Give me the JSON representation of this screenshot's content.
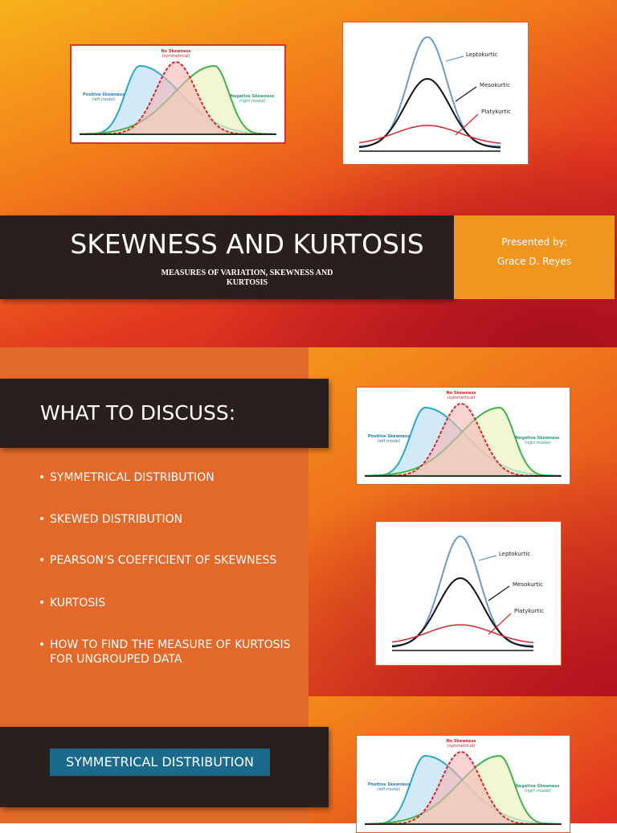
{
  "slides": [
    {
      "title": "SKEWNESS AND KURTOSIS",
      "subtitle": "MEASURES OF VARIATION, SKEWNESS AND KURTOSIS",
      "presenter_label": "Presented by:",
      "presenter": "Grace D. Reyes"
    },
    {
      "heading": "WHAT TO DISCUSS:",
      "items": [
        "SYMMETRICAL DISTRIBUTION",
        "SKEWED DISTRIBUTION",
        "PEARSON’S COEFFICIENT OF SKEWNESS",
        "KURTOSIS",
        "HOW TO FIND THE MEASURE OF KURTOSIS FOR UNGROUPED DATA"
      ]
    },
    {
      "heading": "SYMMETRICAL DISTRIBUTION"
    }
  ],
  "skewness_figure": {
    "center": "No Skewness",
    "center_note": "(symmetrical)",
    "left": "Positive Skewness",
    "left_note": "(left modal)",
    "right": "Negative Skewness",
    "right_note": "(right modal)"
  },
  "kurtosis_figure": {
    "top": "Leptokurtic",
    "middle": "Mesokurtic",
    "bottom": "Platykurtic"
  }
}
